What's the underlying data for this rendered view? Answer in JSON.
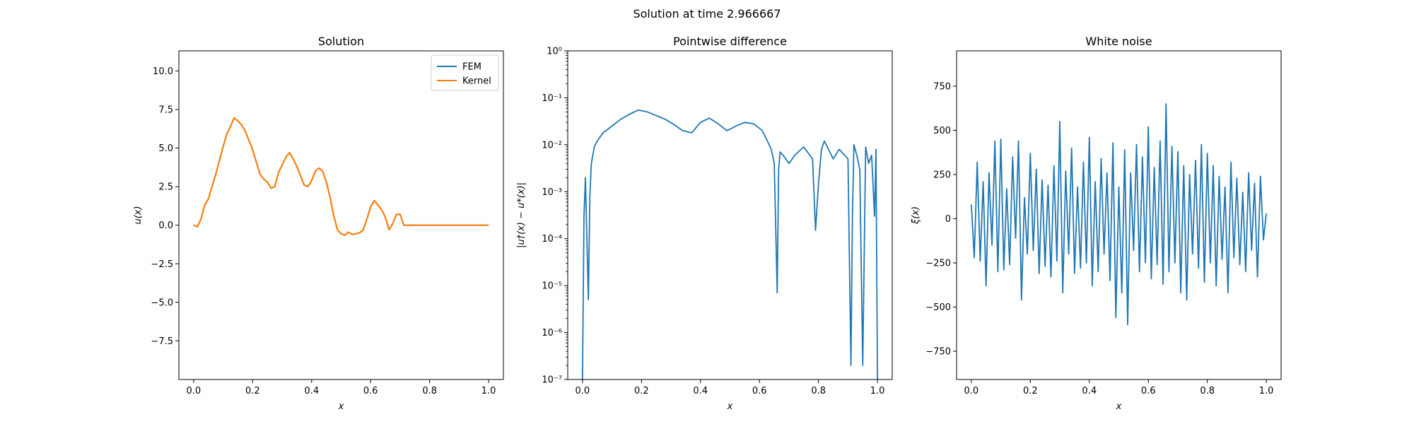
{
  "figure_title": "Solution at time 2.966667",
  "chart_data": [
    {
      "type": "line",
      "title": "Solution",
      "xlabel": "x",
      "ylabel": "u(x)",
      "xlim": [
        -0.05,
        1.05
      ],
      "ylim": [
        -10,
        11.3
      ],
      "xticks": [
        0.0,
        0.2,
        0.4,
        0.6,
        0.8,
        1.0
      ],
      "xtick_labels": [
        "0.0",
        "0.2",
        "0.4",
        "0.6",
        "0.8",
        "1.0"
      ],
      "yticks": [
        -7.5,
        -5.0,
        -2.5,
        0.0,
        2.5,
        5.0,
        7.5,
        10.0
      ],
      "ytick_labels": [
        "−7.5",
        "−5.0",
        "−2.5",
        "0.0",
        "2.5",
        "5.0",
        "7.5",
        "10.0"
      ],
      "legend_position": "top-right",
      "colors": {
        "FEM": "#1f77b4",
        "Kernel": "#ff7f0e"
      },
      "x": [
        0.0,
        0.0125,
        0.025,
        0.0375,
        0.05,
        0.0625,
        0.075,
        0.0875,
        0.1,
        0.1125,
        0.125,
        0.1375,
        0.15,
        0.1625,
        0.175,
        0.1875,
        0.2,
        0.2125,
        0.225,
        0.2375,
        0.25,
        0.2625,
        0.275,
        0.2875,
        0.3,
        0.3125,
        0.325,
        0.3375,
        0.35,
        0.3625,
        0.375,
        0.3875,
        0.4,
        0.4125,
        0.425,
        0.4375,
        0.45,
        0.4625,
        0.475,
        0.4875,
        0.5,
        0.5125,
        0.525,
        0.5375,
        0.55,
        0.5625,
        0.575,
        0.5875,
        0.6,
        0.6125,
        0.625,
        0.6375,
        0.65,
        0.6625,
        0.675,
        0.6875,
        0.7,
        0.7125,
        0.725,
        0.7375,
        0.75,
        0.7625,
        0.775,
        0.7875,
        0.8,
        0.8125,
        0.825,
        0.8375,
        0.85,
        0.8625,
        0.875,
        0.8875,
        0.9,
        0.9125,
        0.925,
        0.9375,
        0.95,
        0.9625,
        0.975,
        0.9875,
        1.0
      ],
      "series": [
        {
          "name": "FEM",
          "values": [
            0.0,
            -0.1,
            0.4,
            1.3,
            1.7,
            2.5,
            3.3,
            4.2,
            5.1,
            5.9,
            6.4,
            6.95,
            6.75,
            6.5,
            6.1,
            5.5,
            4.9,
            4.1,
            3.3,
            3.0,
            2.8,
            2.4,
            2.5,
            3.4,
            3.9,
            4.4,
            4.7,
            4.3,
            3.8,
            3.2,
            2.6,
            2.5,
            2.9,
            3.5,
            3.7,
            3.5,
            2.8,
            1.8,
            0.6,
            -0.3,
            -0.55,
            -0.65,
            -0.45,
            -0.6,
            -0.55,
            -0.5,
            -0.3,
            0.4,
            1.2,
            1.6,
            1.3,
            1.0,
            0.5,
            -0.3,
            0.1,
            0.7,
            0.7,
            0.0,
            0.0,
            0.0,
            0.0,
            0.0,
            0.0,
            0.0,
            0.0,
            0.0,
            0.0,
            0.0,
            0.0,
            0.0,
            0.0,
            0.0,
            0.0,
            0.0,
            0.0,
            0.0,
            0.0,
            0.0,
            0.0,
            0.0,
            0.0
          ]
        },
        {
          "name": "Kernel",
          "values": [
            0.0,
            -0.1,
            0.4,
            1.3,
            1.7,
            2.5,
            3.3,
            4.2,
            5.1,
            5.9,
            6.4,
            6.95,
            6.75,
            6.5,
            6.1,
            5.5,
            4.9,
            4.1,
            3.3,
            3.0,
            2.8,
            2.4,
            2.5,
            3.4,
            3.9,
            4.4,
            4.7,
            4.3,
            3.8,
            3.2,
            2.6,
            2.5,
            2.9,
            3.5,
            3.7,
            3.5,
            2.8,
            1.8,
            0.6,
            -0.3,
            -0.55,
            -0.65,
            -0.45,
            -0.6,
            -0.55,
            -0.5,
            -0.3,
            0.4,
            1.2,
            1.6,
            1.3,
            1.0,
            0.5,
            -0.3,
            0.1,
            0.7,
            0.7,
            0.0,
            0.0,
            0.0,
            0.0,
            0.0,
            0.0,
            0.0,
            0.0,
            0.0,
            0.0,
            0.0,
            0.0,
            0.0,
            0.0,
            0.0,
            0.0,
            0.0,
            0.0,
            0.0,
            0.0,
            0.0,
            0.0,
            0.0,
            0.0
          ]
        }
      ]
    },
    {
      "type": "line",
      "title": "Pointwise difference",
      "xlabel": "x",
      "ylabel": "|u†(x) − u*(x)|",
      "yscale": "log",
      "xlim": [
        -0.05,
        1.05
      ],
      "ylim": [
        1e-07,
        1
      ],
      "xticks": [
        0.0,
        0.2,
        0.4,
        0.6,
        0.8,
        1.0
      ],
      "xtick_labels": [
        "0.0",
        "0.2",
        "0.4",
        "0.6",
        "0.8",
        "1.0"
      ],
      "yticks": [
        1e-07,
        1e-06,
        1e-05,
        0.0001,
        0.001,
        0.01,
        0.1,
        1
      ],
      "ytick_labels": [
        "10⁻⁷",
        "10⁻⁶",
        "10⁻⁵",
        "10⁻⁴",
        "10⁻³",
        "10⁻²",
        "10⁻¹",
        "10⁰"
      ],
      "color": "#1f77b4",
      "x": [
        0.0,
        0.005,
        0.01,
        0.015,
        0.02,
        0.025,
        0.03,
        0.04,
        0.05,
        0.07,
        0.1,
        0.13,
        0.16,
        0.19,
        0.22,
        0.25,
        0.28,
        0.31,
        0.34,
        0.37,
        0.4,
        0.43,
        0.46,
        0.49,
        0.52,
        0.55,
        0.58,
        0.61,
        0.64,
        0.65,
        0.66,
        0.665,
        0.67,
        0.68,
        0.7,
        0.72,
        0.75,
        0.78,
        0.79,
        0.8,
        0.81,
        0.82,
        0.85,
        0.87,
        0.9,
        0.91,
        0.915,
        0.92,
        0.93,
        0.94,
        0.95,
        0.96,
        0.97,
        0.98,
        0.99,
        0.995,
        1.0
      ],
      "values": [
        1e-07,
        0.0003,
        0.002,
        0.0001,
        5e-06,
        0.0008,
        0.004,
        0.009,
        0.012,
        0.018,
        0.025,
        0.035,
        0.045,
        0.055,
        0.05,
        0.042,
        0.035,
        0.027,
        0.02,
        0.018,
        0.03,
        0.037,
        0.028,
        0.02,
        0.025,
        0.03,
        0.028,
        0.02,
        0.008,
        0.004,
        7e-06,
        0.003,
        0.007,
        0.006,
        0.004,
        0.006,
        0.009,
        0.005,
        0.00015,
        0.0015,
        0.008,
        0.012,
        0.005,
        0.008,
        0.005,
        2e-07,
        0.0003,
        0.01,
        0.006,
        0.003,
        2e-07,
        0.009,
        0.004,
        0.006,
        0.0003,
        0.008,
        1e-07
      ]
    },
    {
      "type": "line",
      "title": "White noise",
      "xlabel": "x",
      "ylabel": "ξ(x)",
      "xlim": [
        -0.05,
        1.05
      ],
      "ylim": [
        -910,
        950
      ],
      "xticks": [
        0.0,
        0.2,
        0.4,
        0.6,
        0.8,
        1.0
      ],
      "xtick_labels": [
        "0.0",
        "0.2",
        "0.4",
        "0.6",
        "0.8",
        "1.0"
      ],
      "yticks": [
        -750,
        -500,
        -250,
        0,
        250,
        500,
        750
      ],
      "ytick_labels": [
        "−750",
        "−500",
        "−250",
        "0",
        "250",
        "500",
        "750"
      ],
      "color": "#1f77b4",
      "x": [
        0.0,
        0.01,
        0.02,
        0.03,
        0.04,
        0.05,
        0.06,
        0.07,
        0.08,
        0.09,
        0.1,
        0.11,
        0.12,
        0.13,
        0.14,
        0.15,
        0.16,
        0.17,
        0.18,
        0.19,
        0.2,
        0.21,
        0.22,
        0.23,
        0.24,
        0.25,
        0.26,
        0.27,
        0.28,
        0.29,
        0.3,
        0.31,
        0.32,
        0.33,
        0.34,
        0.35,
        0.36,
        0.37,
        0.38,
        0.39,
        0.4,
        0.41,
        0.42,
        0.43,
        0.44,
        0.45,
        0.46,
        0.47,
        0.48,
        0.49,
        0.5,
        0.51,
        0.52,
        0.53,
        0.54,
        0.55,
        0.56,
        0.57,
        0.58,
        0.59,
        0.6,
        0.61,
        0.62,
        0.63,
        0.64,
        0.65,
        0.66,
        0.67,
        0.68,
        0.69,
        0.7,
        0.71,
        0.72,
        0.73,
        0.74,
        0.75,
        0.76,
        0.77,
        0.78,
        0.79,
        0.8,
        0.81,
        0.82,
        0.83,
        0.84,
        0.85,
        0.86,
        0.87,
        0.88,
        0.89,
        0.9,
        0.91,
        0.92,
        0.93,
        0.94,
        0.95,
        0.96,
        0.97,
        0.98,
        0.99,
        1.0
      ],
      "values": [
        80,
        -220,
        320,
        -240,
        210,
        -380,
        260,
        -150,
        440,
        -300,
        450,
        -290,
        170,
        -260,
        350,
        -110,
        440,
        -460,
        120,
        -200,
        370,
        -180,
        280,
        -310,
        220,
        -270,
        190,
        -330,
        300,
        -240,
        550,
        -420,
        270,
        -200,
        400,
        -310,
        180,
        -280,
        320,
        -250,
        460,
        -380,
        210,
        -300,
        340,
        -200,
        260,
        -350,
        430,
        -560,
        180,
        -420,
        390,
        -600,
        260,
        -180,
        420,
        -300,
        350,
        -250,
        520,
        -340,
        290,
        -260,
        440,
        -370,
        650,
        -300,
        410,
        -250,
        380,
        -420,
        300,
        -460,
        250,
        -200,
        330,
        -280,
        420,
        -360,
        370,
        -250,
        300,
        -380,
        240,
        -230,
        180,
        -420,
        320,
        -220,
        230,
        -260,
        150,
        -300,
        260,
        -180,
        200,
        -330,
        240,
        -120,
        30
      ]
    }
  ]
}
